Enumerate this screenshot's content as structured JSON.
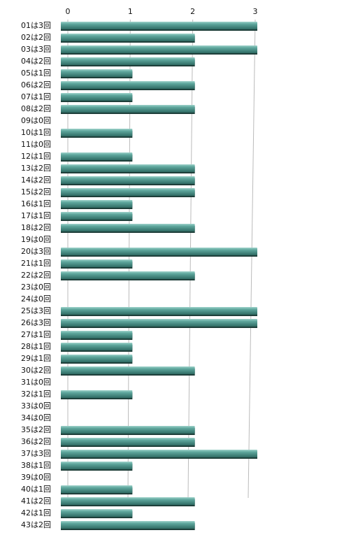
{
  "chart_data": {
    "type": "bar",
    "orientation": "horizontal",
    "categories": [
      "01は3回",
      "02は2回",
      "03は3回",
      "04は2回",
      "05は1回",
      "06は2回",
      "07は1回",
      "08は2回",
      "09は0回",
      "10は1回",
      "11は0回",
      "12は1回",
      "13は2回",
      "14は2回",
      "15は2回",
      "16は1回",
      "17は1回",
      "18は2回",
      "19は0回",
      "20は3回",
      "21は1回",
      "22は2回",
      "23は0回",
      "24は0回",
      "25は3回",
      "26は3回",
      "27は1回",
      "28は1回",
      "29は1回",
      "30は2回",
      "31は0回",
      "32は1回",
      "33は0回",
      "34は0回",
      "35は2回",
      "36は2回",
      "37は3回",
      "38は1回",
      "39は0回",
      "40は1回",
      "41は2回",
      "42は1回",
      "43は2回"
    ],
    "values": [
      3,
      2,
      3,
      2,
      1,
      2,
      1,
      2,
      0,
      1,
      0,
      1,
      2,
      2,
      2,
      1,
      1,
      2,
      0,
      3,
      1,
      2,
      0,
      0,
      3,
      3,
      1,
      1,
      1,
      2,
      0,
      1,
      0,
      0,
      2,
      2,
      3,
      1,
      0,
      1,
      2,
      1,
      2
    ],
    "color": "#4e958c",
    "xlim": [
      0,
      3
    ],
    "xticks": [
      0,
      1,
      2,
      3
    ],
    "grid": true
  }
}
